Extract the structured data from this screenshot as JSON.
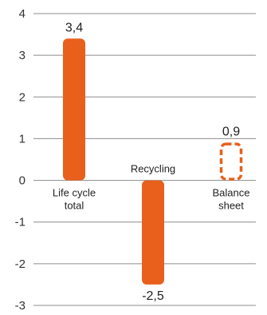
{
  "chart_data": {
    "type": "bar",
    "categories": [
      "Life cycle total",
      "Recycling",
      "Balance sheet"
    ],
    "category_lines": [
      [
        "Life cycle",
        "total"
      ],
      [
        "Recycling"
      ],
      [
        "Balance",
        "sheet"
      ]
    ],
    "values": [
      3.4,
      -2.5,
      0.9
    ],
    "data_labels": [
      "3,4",
      "-2,5",
      "0,9"
    ],
    "bar_styles": [
      "solid",
      "solid",
      "dashed"
    ],
    "yticks": [
      -3,
      -2,
      -1,
      0,
      1,
      2,
      3,
      4
    ],
    "ytick_labels": [
      "-3",
      "-2",
      "-1",
      "0",
      "1",
      "2",
      "3",
      "4"
    ],
    "ylim": [
      -3,
      4
    ],
    "grid": true,
    "title": "",
    "xlabel": "",
    "ylabel": "",
    "bar_color": "#e8601c",
    "grid_color": "#8c8c8c"
  }
}
